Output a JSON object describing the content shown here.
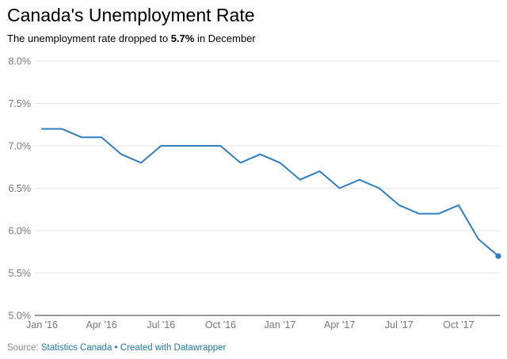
{
  "title": "Canada's Unemployment Rate",
  "subtitle": {
    "prefix": "The unemployment rate dropped to ",
    "highlight": "5.7%",
    "suffix": " in December"
  },
  "footer": {
    "source_label": "Source:",
    "source_name": "Statistics Canada",
    "separator": "•",
    "credit": "Created with Datawrapper"
  },
  "colors": {
    "line": "#2f7fc1",
    "grid": "#e6e6e6",
    "axis_text": "#777777",
    "footer_link": "#1f77b4",
    "footer_label": "#888888"
  },
  "chart_data": {
    "type": "line",
    "title": "Canada's Unemployment Rate",
    "xlabel": "",
    "ylabel": "",
    "ylim": [
      5.0,
      8.0
    ],
    "y_ticks": [
      "8.0%",
      "7.5%",
      "7.0%",
      "6.5%",
      "6.0%",
      "5.5%",
      "5.0%"
    ],
    "y_tick_values": [
      8.0,
      7.5,
      7.0,
      6.5,
      6.0,
      5.5,
      5.0
    ],
    "x_tick_labels": [
      "Jan '16",
      "Apr '16",
      "Jul '16",
      "Oct '16",
      "Jan '17",
      "Apr '17",
      "Jul '17",
      "Oct '17"
    ],
    "x_tick_months": [
      "2016-01",
      "2016-04",
      "2016-07",
      "2016-10",
      "2017-01",
      "2017-04",
      "2017-07",
      "2017-10"
    ],
    "grid": true,
    "x": [
      "2016-01",
      "2016-02",
      "2016-03",
      "2016-04",
      "2016-05",
      "2016-06",
      "2016-07",
      "2016-08",
      "2016-09",
      "2016-10",
      "2016-11",
      "2016-12",
      "2017-01",
      "2017-02",
      "2017-03",
      "2017-04",
      "2017-05",
      "2017-06",
      "2017-07",
      "2017-08",
      "2017-09",
      "2017-10",
      "2017-11",
      "2017-12"
    ],
    "series": [
      {
        "values": [
          7.2,
          7.2,
          7.1,
          7.1,
          6.9,
          6.8,
          7.0,
          7.0,
          7.0,
          7.0,
          6.8,
          6.9,
          6.8,
          6.6,
          6.7,
          6.5,
          6.6,
          6.5,
          6.3,
          6.2,
          6.2,
          6.3,
          5.9,
          5.7
        ]
      }
    ],
    "end_marker": true
  }
}
